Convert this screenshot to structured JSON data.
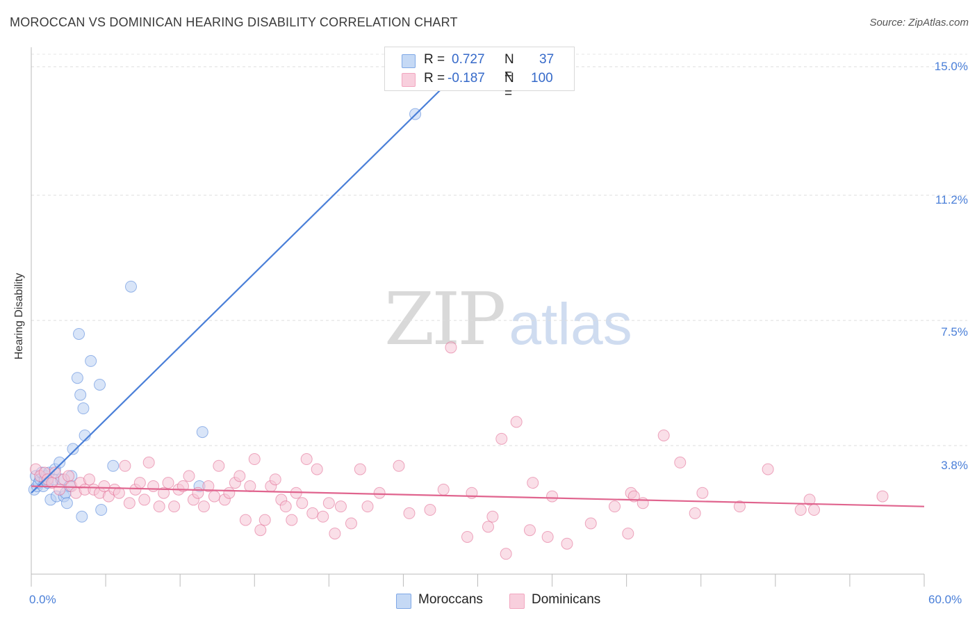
{
  "header": {
    "title": "MOROCCAN VS DOMINICAN HEARING DISABILITY CORRELATION CHART",
    "source": "Source: ZipAtlas.com"
  },
  "watermark": {
    "part1": "ZIP",
    "part2": "atlas"
  },
  "legend": {
    "rows": [
      {
        "r_label": "R =",
        "r_value": "0.727",
        "n_label": "N =",
        "n_value": "37",
        "color": "#7fa8e6"
      },
      {
        "r_label": "R =",
        "r_value": "-0.187",
        "n_label": "N =",
        "n_value": "100",
        "color": "#f2a6c0"
      }
    ]
  },
  "bottom_legend": {
    "moroccans": "Moroccans",
    "dominicans": "Dominicans"
  },
  "chart_data": {
    "type": "scatter",
    "title": "MOROCCAN VS DOMINICAN HEARING DISABILITY CORRELATION CHART",
    "xlabel": "",
    "ylabel": "Hearing Disability",
    "xlim": [
      0,
      60
    ],
    "ylim": [
      0,
      15.0
    ],
    "x_tick_labels": [
      "0.0%",
      "60.0%"
    ],
    "y_tick_labels": [
      "3.8%",
      "7.5%",
      "11.2%",
      "15.0%"
    ],
    "y_tick_values": [
      3.8,
      7.5,
      11.2,
      15.0
    ],
    "grid": true,
    "series": [
      {
        "name": "Moroccans",
        "color": "#4a7fd8",
        "fill": "#b9d0f2",
        "R": 0.727,
        "N": 37,
        "trend": {
          "x0": 0,
          "y0": 2.4,
          "x1": 30,
          "y1": 15.4,
          "dashed_from_x": 30
        },
        "points": [
          [
            0.2,
            2.5
          ],
          [
            0.3,
            2.9
          ],
          [
            0.4,
            2.6
          ],
          [
            0.5,
            2.7
          ],
          [
            0.6,
            2.8
          ],
          [
            0.7,
            3.0
          ],
          [
            0.8,
            2.6
          ],
          [
            0.9,
            2.8
          ],
          [
            1.0,
            2.9
          ],
          [
            1.1,
            2.7
          ],
          [
            1.2,
            3.0
          ],
          [
            1.3,
            2.2
          ],
          [
            1.5,
            2.8
          ],
          [
            1.6,
            3.1
          ],
          [
            1.7,
            2.3
          ],
          [
            1.9,
            3.3
          ],
          [
            2.0,
            2.8
          ],
          [
            2.2,
            2.3
          ],
          [
            2.3,
            2.4
          ],
          [
            2.4,
            2.1
          ],
          [
            2.6,
            2.6
          ],
          [
            2.7,
            2.9
          ],
          [
            2.8,
            3.7
          ],
          [
            3.2,
            7.1
          ],
          [
            3.3,
            5.3
          ],
          [
            3.1,
            5.8
          ],
          [
            3.4,
            1.7
          ],
          [
            3.5,
            4.9
          ],
          [
            3.6,
            4.1
          ],
          [
            4.0,
            6.3
          ],
          [
            4.6,
            5.6
          ],
          [
            4.7,
            1.9
          ],
          [
            5.5,
            3.2
          ],
          [
            6.7,
            8.5
          ],
          [
            11.3,
            2.6
          ],
          [
            11.5,
            4.2
          ],
          [
            25.8,
            13.6
          ]
        ]
      },
      {
        "name": "Dominicans",
        "color": "#e0648e",
        "fill": "#f6c4d5",
        "R": -0.187,
        "N": 100,
        "trend": {
          "x0": 0,
          "y0": 2.6,
          "x1": 60,
          "y1": 2.0
        },
        "points": [
          [
            0.3,
            3.1
          ],
          [
            0.6,
            2.9
          ],
          [
            0.9,
            3.0
          ],
          [
            1.1,
            2.8
          ],
          [
            1.4,
            2.7
          ],
          [
            1.6,
            3.0
          ],
          [
            1.9,
            2.5
          ],
          [
            2.2,
            2.8
          ],
          [
            2.5,
            2.9
          ],
          [
            2.7,
            2.6
          ],
          [
            3.0,
            2.4
          ],
          [
            3.3,
            2.7
          ],
          [
            3.6,
            2.5
          ],
          [
            3.9,
            2.8
          ],
          [
            4.2,
            2.5
          ],
          [
            4.6,
            2.4
          ],
          [
            4.9,
            2.6
          ],
          [
            5.2,
            2.3
          ],
          [
            5.6,
            2.5
          ],
          [
            5.9,
            2.4
          ],
          [
            6.3,
            3.2
          ],
          [
            6.6,
            2.1
          ],
          [
            7.0,
            2.5
          ],
          [
            7.3,
            2.7
          ],
          [
            7.6,
            2.2
          ],
          [
            7.9,
            3.3
          ],
          [
            8.2,
            2.6
          ],
          [
            8.6,
            2.0
          ],
          [
            8.9,
            2.4
          ],
          [
            9.2,
            2.7
          ],
          [
            9.6,
            2.0
          ],
          [
            9.9,
            2.5
          ],
          [
            10.2,
            2.6
          ],
          [
            10.6,
            2.9
          ],
          [
            10.9,
            2.2
          ],
          [
            11.2,
            2.4
          ],
          [
            11.6,
            2.0
          ],
          [
            11.9,
            2.6
          ],
          [
            12.3,
            2.3
          ],
          [
            12.6,
            3.2
          ],
          [
            13.0,
            2.2
          ],
          [
            13.3,
            2.4
          ],
          [
            13.7,
            2.7
          ],
          [
            14.0,
            2.9
          ],
          [
            14.4,
            1.6
          ],
          [
            14.7,
            2.6
          ],
          [
            15.0,
            3.4
          ],
          [
            15.4,
            1.3
          ],
          [
            15.7,
            1.6
          ],
          [
            16.1,
            2.6
          ],
          [
            16.4,
            2.8
          ],
          [
            16.8,
            2.2
          ],
          [
            17.1,
            2.0
          ],
          [
            17.5,
            1.6
          ],
          [
            17.8,
            2.4
          ],
          [
            18.2,
            2.1
          ],
          [
            18.5,
            3.4
          ],
          [
            18.9,
            1.8
          ],
          [
            19.2,
            3.1
          ],
          [
            19.6,
            1.7
          ],
          [
            20.0,
            2.1
          ],
          [
            20.4,
            1.2
          ],
          [
            20.8,
            2.0
          ],
          [
            21.5,
            1.5
          ],
          [
            22.1,
            3.1
          ],
          [
            22.6,
            2.0
          ],
          [
            23.4,
            2.4
          ],
          [
            24.7,
            3.2
          ],
          [
            25.4,
            1.8
          ],
          [
            26.8,
            1.9
          ],
          [
            27.7,
            2.5
          ],
          [
            28.2,
            6.7
          ],
          [
            29.3,
            1.1
          ],
          [
            29.6,
            2.4
          ],
          [
            30.7,
            1.4
          ],
          [
            31.0,
            1.7
          ],
          [
            31.6,
            4.0
          ],
          [
            31.9,
            0.6
          ],
          [
            32.6,
            4.5
          ],
          [
            33.5,
            1.3
          ],
          [
            33.7,
            2.7
          ],
          [
            34.7,
            1.1
          ],
          [
            35.0,
            2.3
          ],
          [
            36.0,
            0.9
          ],
          [
            37.6,
            1.5
          ],
          [
            39.2,
            2.0
          ],
          [
            40.1,
            1.2
          ],
          [
            40.3,
            2.4
          ],
          [
            40.5,
            2.3
          ],
          [
            41.1,
            2.1
          ],
          [
            42.5,
            4.1
          ],
          [
            43.6,
            3.3
          ],
          [
            44.6,
            1.8
          ],
          [
            45.1,
            2.4
          ],
          [
            47.6,
            2.0
          ],
          [
            49.5,
            3.1
          ],
          [
            51.7,
            1.9
          ],
          [
            52.3,
            2.2
          ],
          [
            52.6,
            1.9
          ],
          [
            57.2,
            2.3
          ]
        ]
      }
    ]
  }
}
